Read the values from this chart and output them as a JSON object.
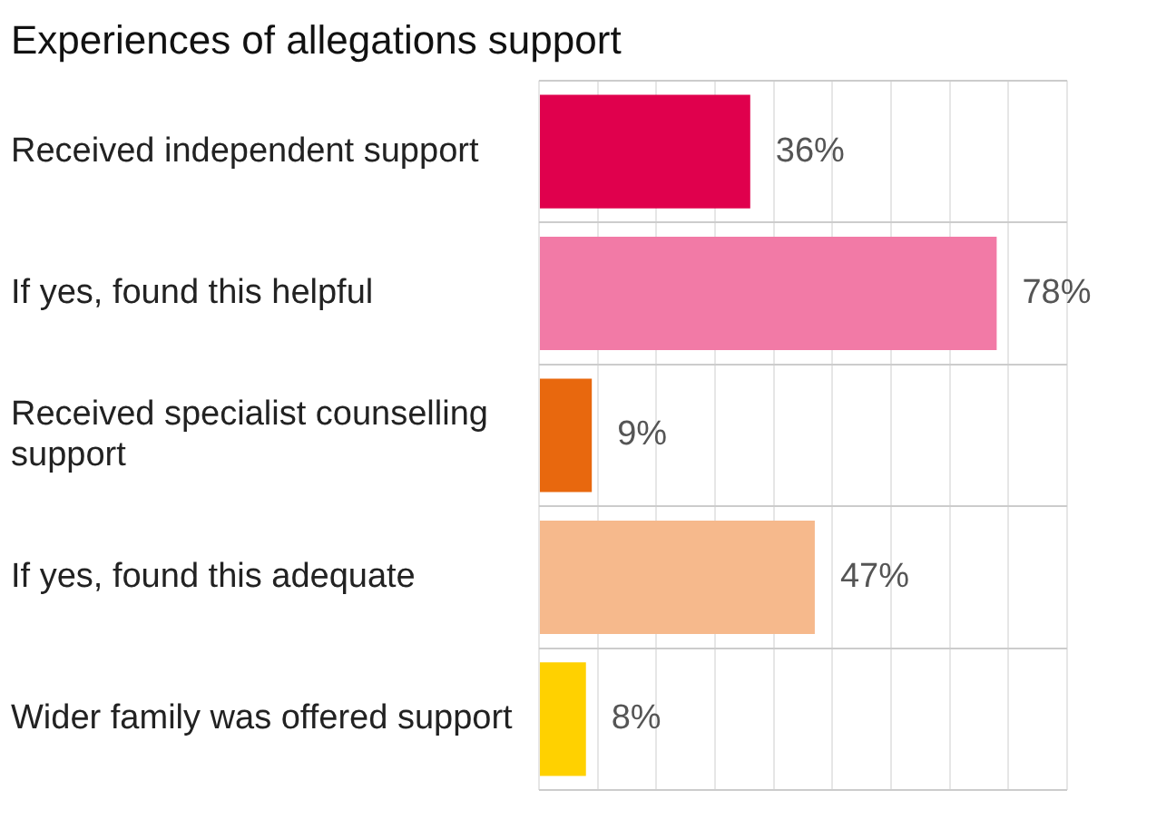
{
  "chart_data": {
    "type": "bar",
    "orientation": "horizontal",
    "title": "Experiences of allegations support",
    "categories": [
      "Received independent support",
      "If yes, found this helpful",
      "Received specialist counselling support",
      "If yes, found this adequate",
      "Wider family was offered support"
    ],
    "values": [
      36,
      78,
      9,
      47,
      8
    ],
    "colors": [
      "#e0004d",
      "#f27aa6",
      "#e8680e",
      "#f6b98c",
      "#ffd100"
    ],
    "value_labels": [
      "36%",
      "78%",
      "9%",
      "47%",
      "8%"
    ],
    "xlim": [
      0,
      90
    ],
    "xticks": [
      {
        "value": 0,
        "label": null
      },
      {
        "value": 10,
        "label": null
      },
      {
        "value": 20,
        "label": null
      },
      {
        "value": 30,
        "label": null
      },
      {
        "value": 40,
        "label": null
      },
      {
        "value": 50,
        "label": null
      },
      {
        "value": 60,
        "label": null
      },
      {
        "value": 70,
        "label": null
      },
      {
        "value": 80,
        "label": null
      },
      {
        "value": 90,
        "label": null
      }
    ],
    "grid": true,
    "tick_labels": "y"
  }
}
